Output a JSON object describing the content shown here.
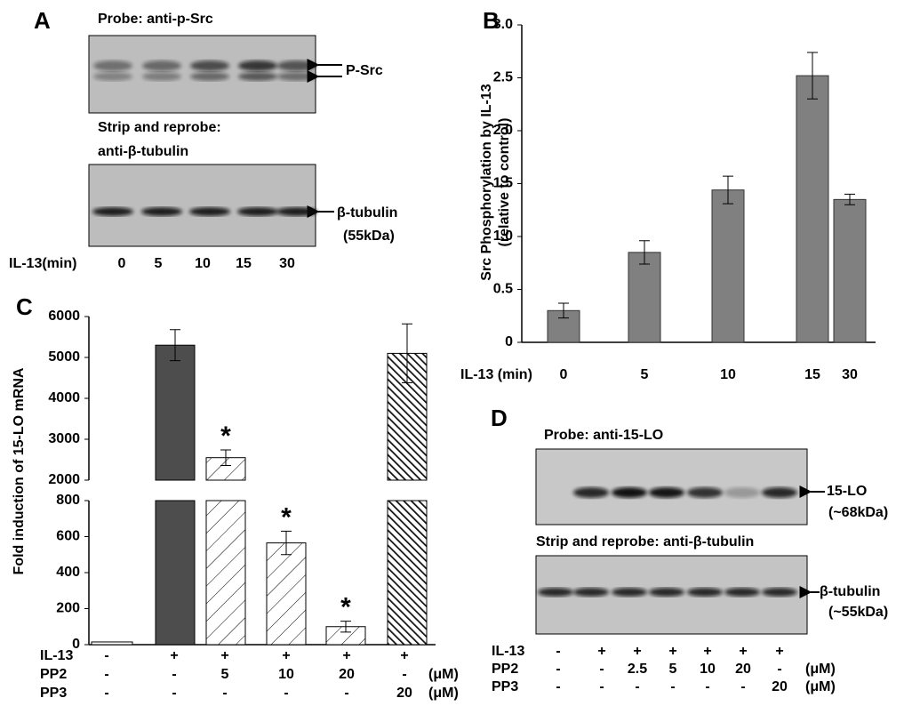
{
  "panel_a": {
    "letter": "A",
    "probe": "Probe:  anti-p-Src",
    "band_label": "P-Src",
    "reprobe_lines": [
      "Strip  and  reprobe:",
      "anti-β-tubulin"
    ],
    "loading_label": "β-tubulin",
    "loading_size": "(55kDa)",
    "lane_title": "IL-13(min)",
    "lanes": [
      "0",
      "5",
      "10",
      "15",
      "30"
    ]
  },
  "chart_data": [
    {
      "type": "bar",
      "letter": "B",
      "y_label_lines": [
        "Src  Phosphorylation  by  IL-13",
        "(relative  to  control)"
      ],
      "x_label": "IL-13  (min)",
      "categories": [
        "0",
        "5",
        "10",
        "15",
        "30"
      ],
      "values": [
        0.3,
        0.85,
        1.44,
        2.52,
        1.35
      ],
      "errors": [
        0.07,
        0.11,
        0.13,
        0.22,
        0.05
      ],
      "color": "#808080",
      "ylim": [
        0,
        3
      ],
      "yticks": [
        0,
        0.5,
        {
          "value": 1,
          "label": "1.0"
        },
        1.5,
        {
          "value": 2,
          "label": "2.0"
        },
        2.5,
        {
          "value": 3,
          "label": "3.0"
        }
      ]
    },
    {
      "type": "broken_bar",
      "letter": "C",
      "y_label": "Fold induction of 15-LO mRNA",
      "values": [
        15,
        5300,
        2550,
        565,
        100,
        5100
      ],
      "errors": [
        0,
        380,
        190,
        65,
        30,
        720
      ],
      "significance": [
        null,
        null,
        "*",
        "*",
        "*",
        null
      ],
      "lower_axis": {
        "ylim": [
          0,
          800
        ],
        "yticks": [
          0,
          200,
          400,
          600,
          800
        ]
      },
      "upper_axis": {
        "ylim": [
          2000,
          6000
        ],
        "yticks": [
          2000,
          3000,
          4000,
          5000,
          6000
        ]
      },
      "conditions": [
        {
          "name": "IL-13",
          "levels": [
            "-",
            "+",
            "+",
            "+",
            "+",
            "+"
          ]
        },
        {
          "name": "PP2",
          "levels": [
            "-",
            "-",
            "5",
            "10",
            "20",
            "-"
          ],
          "unit": "(μM)"
        },
        {
          "name": "PP3",
          "levels": [
            "-",
            "-",
            "-",
            "-",
            "-",
            "20"
          ],
          "unit": "(μM)"
        }
      ]
    }
  ],
  "panel_d": {
    "letter": "D",
    "probe": "Probe:  anti-15-LO",
    "band_label": "15-LO",
    "band_size": "(~68kDa)",
    "reprobe": "Strip  and  reprobe:  anti-β-tubulin",
    "loading_label": "β-tubulin",
    "loading_size": "(~55kDa)",
    "conditions": [
      {
        "name": "IL-13",
        "levels": [
          "-",
          "+",
          "+",
          "+",
          "+",
          "+",
          "+"
        ]
      },
      {
        "name": "PP2",
        "levels": [
          "-",
          "-",
          "2.5",
          "5",
          "10",
          "20",
          "-"
        ],
        "unit": "(μM)"
      },
      {
        "name": "PP3",
        "levels": [
          "-",
          "-",
          "-",
          "-",
          "-",
          "-",
          "20"
        ],
        "unit": "(μM)"
      }
    ]
  }
}
